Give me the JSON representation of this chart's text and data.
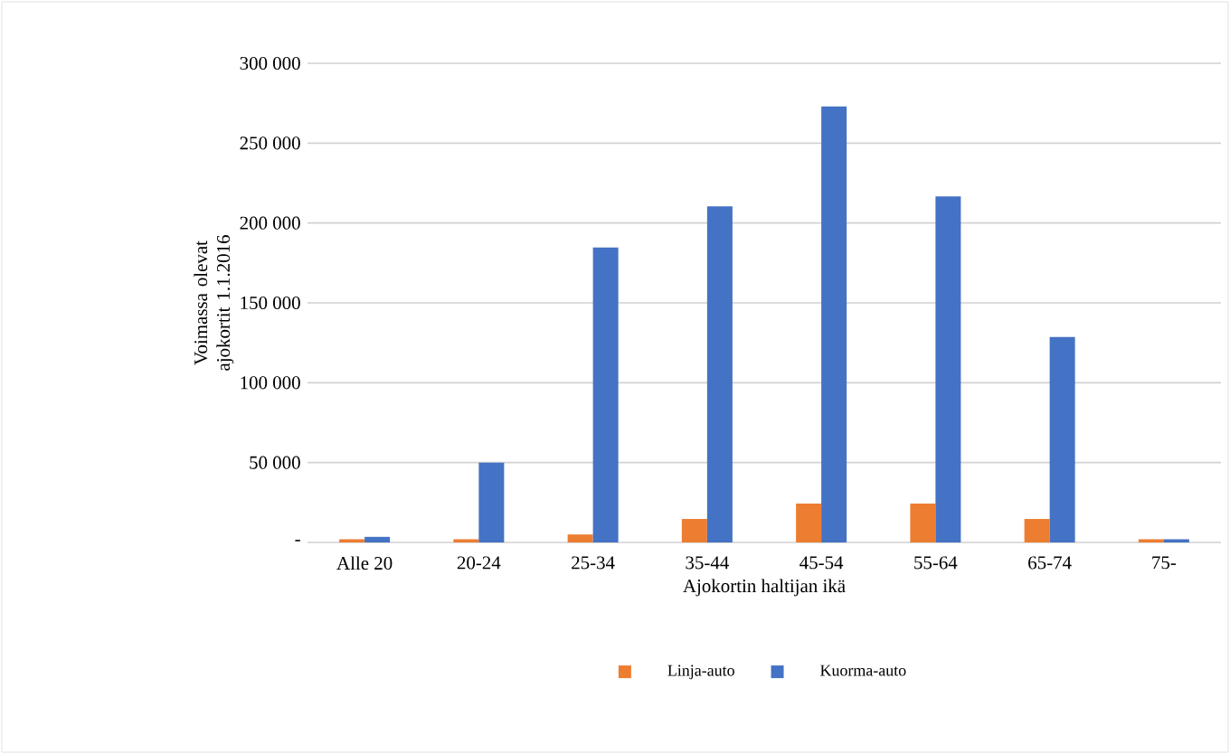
{
  "chart_data": {
    "type": "bar",
    "categories": [
      "Alle 20",
      "20-24",
      "25-34",
      "35-44",
      "45-54",
      "55-64",
      "65-74",
      "75-"
    ],
    "series": [
      {
        "name": "Linja-auto",
        "color": "#ed7d31",
        "values": [
          2000,
          2000,
          5000,
          14700,
          24300,
          24300,
          14700,
          2000
        ]
      },
      {
        "name": "Kuorma-auto",
        "color": "#4472c4",
        "values": [
          3500,
          50000,
          184600,
          210400,
          273000,
          216600,
          128600,
          2000
        ]
      }
    ],
    "xlabel": "Ajokortin haltijan ikä",
    "ylabel": "Voimassa olevat ajokortit 1.1.2016",
    "ylim": [
      0,
      300000
    ],
    "yticks": [
      {
        "value": 0,
        "label": "-"
      },
      {
        "value": 50000,
        "label": "50 000"
      },
      {
        "value": 100000,
        "label": "100 000"
      },
      {
        "value": 150000,
        "label": "150 000"
      },
      {
        "value": 200000,
        "label": "200 000"
      },
      {
        "value": 250000,
        "label": "250 000"
      },
      {
        "value": 300000,
        "label": "300 000"
      }
    ],
    "grid": "y",
    "legend": "bottom"
  }
}
